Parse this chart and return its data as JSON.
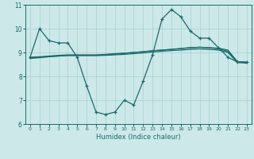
{
  "title": "",
  "xlabel": "Humidex (Indice chaleur)",
  "background_color": "#cce8e8",
  "line_color": "#1a6b6b",
  "grid_color": "#a8d0d0",
  "xlim": [
    -0.5,
    23.5
  ],
  "ylim": [
    6,
    11
  ],
  "yticks": [
    6,
    7,
    8,
    9,
    10,
    11
  ],
  "xticks": [
    0,
    1,
    2,
    3,
    4,
    5,
    6,
    7,
    8,
    9,
    10,
    11,
    12,
    13,
    14,
    15,
    16,
    17,
    18,
    19,
    20,
    21,
    22,
    23
  ],
  "line1_x": [
    0,
    1,
    2,
    3,
    4,
    5,
    6,
    7,
    8,
    9,
    10,
    11,
    12,
    13,
    14,
    15,
    16,
    17,
    18,
    19,
    20,
    21,
    22,
    23
  ],
  "line1_y": [
    8.8,
    10.0,
    9.5,
    9.4,
    9.4,
    8.8,
    7.6,
    6.5,
    6.4,
    6.5,
    7.0,
    6.8,
    7.8,
    8.9,
    10.4,
    10.8,
    10.5,
    9.9,
    9.6,
    9.6,
    9.2,
    8.8,
    8.6,
    8.6
  ],
  "line2_x": [
    0,
    1,
    2,
    3,
    4,
    5,
    6,
    7,
    8,
    9,
    10,
    11,
    12,
    13,
    14,
    15,
    16,
    17,
    18,
    19,
    20,
    21,
    22,
    23
  ],
  "line2_y": [
    8.75,
    8.78,
    8.82,
    8.85,
    8.88,
    8.88,
    8.88,
    8.88,
    8.9,
    8.93,
    8.96,
    9.0,
    9.03,
    9.07,
    9.1,
    9.13,
    9.16,
    9.2,
    9.22,
    9.2,
    9.15,
    9.05,
    8.62,
    8.58
  ],
  "line3_x": [
    0,
    1,
    2,
    3,
    4,
    5,
    6,
    7,
    8,
    9,
    10,
    11,
    12,
    13,
    14,
    15,
    16,
    17,
    18,
    19,
    20,
    21,
    22,
    23
  ],
  "line3_y": [
    8.78,
    8.8,
    8.83,
    8.85,
    8.87,
    8.87,
    8.87,
    8.87,
    8.88,
    8.9,
    8.92,
    8.95,
    8.98,
    9.02,
    9.05,
    9.08,
    9.1,
    9.13,
    9.15,
    9.13,
    9.1,
    9.0,
    8.58,
    8.55
  ],
  "line4_x": [
    0,
    1,
    2,
    3,
    4,
    5,
    6,
    7,
    8,
    9,
    10,
    11,
    12,
    13,
    14,
    15,
    16,
    17,
    18,
    19,
    20,
    21,
    22,
    23
  ],
  "line4_y": [
    8.8,
    8.82,
    8.85,
    8.88,
    8.9,
    8.9,
    8.9,
    8.9,
    8.92,
    8.95,
    8.97,
    9.0,
    9.03,
    9.07,
    9.1,
    9.13,
    9.17,
    9.2,
    9.22,
    9.2,
    9.18,
    9.1,
    8.62,
    8.58
  ]
}
